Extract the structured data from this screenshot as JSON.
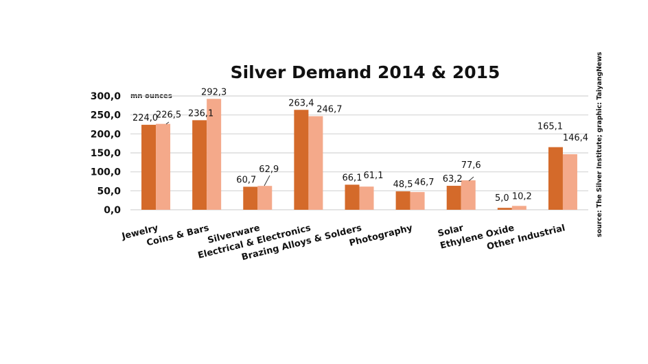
{
  "chart_data": {
    "type": "bar",
    "title": "Silver Demand 2014 & 2015",
    "ylabel": "mn ounces",
    "xlabel": "",
    "ylim": [
      0,
      300
    ],
    "yticks": [
      "0,0",
      "50,0",
      "100,0",
      "150,0",
      "200,0",
      "250,0",
      "300,0"
    ],
    "grid": true,
    "categories": [
      "Jewelry",
      "Coins & Bars",
      "Silverware",
      "Electrical & Electronics",
      "Brazing Alloys & Solders",
      "Photography",
      "Solar",
      "Ethylene Oxide",
      "Other Industrial"
    ],
    "series": [
      {
        "values": [
          224.0,
          236.1,
          60.7,
          263.4,
          66.1,
          48.5,
          63.2,
          5.0,
          165.1
        ],
        "labels": [
          "224,0",
          "236,1",
          "60,7",
          "263,4",
          "66,1",
          "48,5",
          "63,2",
          "5,0",
          "165,1"
        ],
        "color": "#D46A2A"
      },
      {
        "values": [
          226.5,
          292.3,
          62.9,
          246.7,
          61.1,
          46.7,
          77.6,
          10.2,
          146.4
        ],
        "labels": [
          "226,5",
          "292,3",
          "62,9",
          "246,7",
          "61,1",
          "46,7",
          "77,6",
          "10,2",
          "146,4"
        ],
        "color": "#F4A98A"
      }
    ],
    "source": "source: The Silver Institute; graphic: TaiyangNews"
  }
}
